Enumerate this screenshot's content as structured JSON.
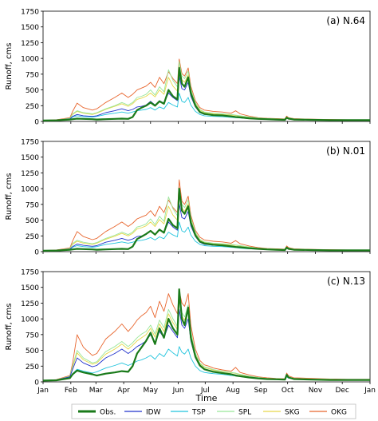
{
  "colors": {
    "Obs.": "#1a7a1a",
    "IDW": "#2233cc",
    "TSP": "#22c4dd",
    "SPL": "#99e699",
    "SKG": "#e6d84a",
    "OKG": "#e8662e"
  },
  "shared": {
    "xlabel": "Time",
    "ylabel": "Runoff, cms",
    "yticks": [
      "0",
      "250",
      "500",
      "750",
      "1000",
      "1250",
      "1500",
      "1750"
    ],
    "ylim": [
      0,
      1750
    ],
    "xlim_days": [
      0,
      365
    ],
    "month_ticks": [
      {
        "label": "Jan",
        "day": 0
      },
      {
        "label": "Feb",
        "day": 31
      },
      {
        "label": "Mar",
        "day": 59
      },
      {
        "label": "Apr",
        "day": 90
      },
      {
        "label": "May",
        "day": 120
      },
      {
        "label": "Jun",
        "day": 151
      },
      {
        "label": "Jul",
        "day": 181
      },
      {
        "label": "Aug",
        "day": 212
      },
      {
        "label": "Sep",
        "day": 243
      },
      {
        "label": "Oct",
        "day": 273
      },
      {
        "label": "Nov",
        "day": 304
      },
      {
        "label": "Dec",
        "day": 334
      },
      {
        "label": "Jan",
        "day": 365
      }
    ]
  },
  "legend": [
    "Obs.",
    "IDW",
    "TSP",
    "SPL",
    "SKG",
    "OKG"
  ],
  "chart_data": [
    {
      "type": "line",
      "title": "(a) N.64",
      "x_days": [
        0,
        15,
        30,
        33,
        38,
        45,
        55,
        60,
        70,
        80,
        88,
        95,
        100,
        105,
        110,
        115,
        120,
        125,
        130,
        135,
        140,
        145,
        150,
        152,
        155,
        158,
        162,
        165,
        170,
        175,
        180,
        185,
        190,
        200,
        210,
        215,
        220,
        230,
        240,
        250,
        260,
        270,
        272,
        274,
        280,
        300,
        320,
        340,
        365
      ],
      "series": [
        {
          "name": "Obs.",
          "values": [
            15,
            18,
            30,
            35,
            45,
            40,
            35,
            30,
            35,
            40,
            45,
            40,
            70,
            180,
            220,
            250,
            300,
            250,
            320,
            280,
            500,
            400,
            350,
            850,
            600,
            550,
            700,
            450,
            250,
            150,
            120,
            110,
            100,
            95,
            80,
            70,
            65,
            50,
            40,
            35,
            30,
            25,
            60,
            45,
            30,
            25,
            20,
            20,
            20
          ]
        },
        {
          "name": "IDW",
          "values": [
            15,
            20,
            40,
            80,
            110,
            90,
            80,
            90,
            140,
            170,
            200,
            170,
            190,
            230,
            240,
            260,
            320,
            260,
            330,
            290,
            450,
            380,
            330,
            720,
            520,
            500,
            620,
            400,
            230,
            140,
            110,
            105,
            95,
            90,
            75,
            70,
            60,
            45,
            40,
            35,
            30,
            25,
            60,
            45,
            30,
            25,
            20,
            20,
            20
          ]
        },
        {
          "name": "TSP",
          "values": [
            15,
            20,
            35,
            70,
            90,
            75,
            70,
            80,
            110,
            130,
            150,
            130,
            150,
            170,
            180,
            190,
            220,
            180,
            230,
            200,
            300,
            260,
            230,
            450,
            320,
            300,
            380,
            260,
            160,
            110,
            90,
            85,
            80,
            75,
            65,
            60,
            55,
            45,
            40,
            35,
            30,
            25,
            50,
            40,
            30,
            25,
            20,
            20,
            20
          ]
        },
        {
          "name": "SPL",
          "values": [
            15,
            22,
            50,
            120,
            170,
            140,
            120,
            140,
            200,
            250,
            300,
            260,
            300,
            380,
            400,
            430,
            500,
            420,
            550,
            470,
            820,
            650,
            550,
            950,
            720,
            680,
            800,
            520,
            300,
            190,
            150,
            140,
            130,
            120,
            110,
            100,
            90,
            70,
            55,
            45,
            40,
            35,
            70,
            55,
            40,
            30,
            25,
            20,
            20
          ]
        },
        {
          "name": "SKG",
          "values": [
            15,
            22,
            45,
            110,
            160,
            130,
            110,
            130,
            190,
            240,
            280,
            240,
            280,
            350,
            370,
            400,
            450,
            390,
            500,
            430,
            700,
            560,
            480,
            880,
            660,
            620,
            740,
            480,
            280,
            180,
            140,
            130,
            120,
            110,
            100,
            95,
            85,
            65,
            50,
            45,
            40,
            35,
            70,
            55,
            40,
            30,
            25,
            20,
            20
          ]
        },
        {
          "name": "OKG",
          "values": [
            15,
            25,
            60,
            160,
            290,
            220,
            180,
            200,
            300,
            380,
            450,
            380,
            430,
            500,
            530,
            560,
            620,
            540,
            700,
            600,
            790,
            680,
            600,
            990,
            760,
            720,
            850,
            560,
            330,
            220,
            180,
            170,
            160,
            150,
            130,
            170,
            120,
            85,
            60,
            50,
            45,
            40,
            85,
            60,
            45,
            35,
            30,
            25,
            25
          ]
        }
      ]
    },
    {
      "type": "line",
      "title": "(b) N.01",
      "x_days": [
        0,
        15,
        30,
        33,
        38,
        45,
        55,
        60,
        70,
        80,
        88,
        95,
        100,
        105,
        110,
        115,
        120,
        125,
        130,
        135,
        140,
        145,
        150,
        152,
        155,
        158,
        162,
        165,
        170,
        175,
        180,
        185,
        190,
        200,
        210,
        215,
        220,
        230,
        240,
        250,
        260,
        270,
        272,
        274,
        280,
        300,
        320,
        340,
        365
      ],
      "series": [
        {
          "name": "Obs.",
          "values": [
            15,
            18,
            30,
            35,
            45,
            40,
            35,
            30,
            35,
            40,
            45,
            40,
            80,
            200,
            240,
            280,
            330,
            270,
            350,
            300,
            520,
            420,
            370,
            1000,
            650,
            600,
            720,
            460,
            260,
            160,
            130,
            120,
            110,
            100,
            85,
            75,
            70,
            55,
            45,
            35,
            30,
            25,
            65,
            45,
            30,
            25,
            20,
            20,
            20
          ]
        },
        {
          "name": "IDW",
          "values": [
            15,
            20,
            40,
            80,
            120,
            100,
            85,
            95,
            150,
            180,
            210,
            180,
            200,
            240,
            250,
            270,
            330,
            270,
            340,
            300,
            470,
            390,
            340,
            760,
            540,
            520,
            640,
            410,
            240,
            150,
            115,
            110,
            100,
            95,
            80,
            75,
            65,
            50,
            40,
            35,
            30,
            25,
            60,
            45,
            30,
            25,
            20,
            20,
            20
          ]
        },
        {
          "name": "TSP",
          "values": [
            15,
            20,
            35,
            70,
            95,
            80,
            70,
            80,
            115,
            135,
            155,
            135,
            150,
            170,
            180,
            195,
            225,
            185,
            235,
            205,
            310,
            265,
            235,
            470,
            330,
            310,
            390,
            265,
            165,
            115,
            95,
            90,
            85,
            80,
            70,
            65,
            55,
            45,
            40,
            35,
            30,
            25,
            50,
            40,
            30,
            25,
            20,
            20,
            20
          ]
        },
        {
          "name": "SPL",
          "values": [
            15,
            22,
            50,
            130,
            180,
            150,
            125,
            145,
            210,
            260,
            310,
            270,
            310,
            390,
            410,
            440,
            520,
            430,
            560,
            480,
            870,
            680,
            570,
            1000,
            750,
            700,
            820,
            540,
            310,
            195,
            155,
            145,
            135,
            125,
            115,
            105,
            95,
            75,
            55,
            45,
            40,
            35,
            75,
            55,
            40,
            30,
            25,
            20,
            20
          ]
        },
        {
          "name": "SKG",
          "values": [
            15,
            22,
            45,
            115,
            165,
            135,
            115,
            135,
            195,
            245,
            290,
            250,
            290,
            360,
            380,
            410,
            470,
            400,
            510,
            440,
            720,
            580,
            500,
            920,
            690,
            640,
            760,
            500,
            290,
            185,
            145,
            135,
            125,
            115,
            105,
            100,
            90,
            70,
            50,
            45,
            40,
            35,
            70,
            55,
            40,
            30,
            25,
            20,
            20
          ]
        },
        {
          "name": "OKG",
          "values": [
            15,
            25,
            60,
            170,
            320,
            240,
            190,
            210,
            320,
            400,
            470,
            400,
            450,
            520,
            550,
            580,
            650,
            560,
            720,
            620,
            820,
            700,
            620,
            1140,
            800,
            750,
            880,
            580,
            340,
            230,
            185,
            175,
            165,
            155,
            135,
            175,
            125,
            90,
            65,
            50,
            45,
            40,
            90,
            65,
            45,
            35,
            30,
            25,
            25
          ]
        }
      ]
    },
    {
      "type": "line",
      "title": "(c) N.13",
      "x_days": [
        0,
        15,
        30,
        33,
        38,
        45,
        55,
        60,
        70,
        80,
        88,
        95,
        100,
        105,
        110,
        115,
        120,
        125,
        130,
        135,
        140,
        145,
        150,
        152,
        155,
        158,
        162,
        165,
        170,
        175,
        180,
        185,
        190,
        200,
        210,
        215,
        220,
        230,
        240,
        250,
        260,
        270,
        272,
        274,
        280,
        300,
        320,
        340,
        365
      ],
      "series": [
        {
          "name": "Obs.",
          "values": [
            20,
            25,
            60,
            120,
            180,
            150,
            120,
            100,
            130,
            150,
            170,
            160,
            250,
            450,
            550,
            650,
            780,
            600,
            850,
            700,
            1000,
            850,
            750,
            1470,
            1000,
            900,
            1180,
            700,
            400,
            260,
            200,
            180,
            160,
            140,
            120,
            100,
            90,
            70,
            55,
            45,
            40,
            35,
            110,
            70,
            45,
            35,
            30,
            30,
            30
          ]
        },
        {
          "name": "IDW",
          "values": [
            20,
            30,
            80,
            200,
            380,
            300,
            240,
            260,
            380,
            450,
            520,
            450,
            500,
            560,
            600,
            650,
            750,
            620,
            800,
            700,
            900,
            800,
            700,
            1150,
            900,
            850,
            1000,
            650,
            380,
            250,
            200,
            180,
            160,
            140,
            120,
            110,
            95,
            75,
            60,
            50,
            45,
            40,
            100,
            70,
            50,
            40,
            35,
            30,
            30
          ]
        },
        {
          "name": "TSP",
          "values": [
            20,
            28,
            60,
            130,
            200,
            170,
            140,
            160,
            220,
            260,
            300,
            260,
            290,
            330,
            350,
            380,
            420,
            360,
            450,
            400,
            520,
            460,
            410,
            560,
            470,
            440,
            520,
            380,
            250,
            180,
            150,
            140,
            130,
            120,
            100,
            95,
            85,
            65,
            55,
            45,
            40,
            35,
            80,
            60,
            45,
            35,
            30,
            30,
            30
          ]
        },
        {
          "name": "SPL",
          "values": [
            20,
            32,
            90,
            250,
            500,
            380,
            300,
            320,
            480,
            560,
            640,
            560,
            620,
            700,
            760,
            800,
            900,
            760,
            980,
            860,
            1150,
            1000,
            880,
            1400,
            1100,
            1030,
            1220,
            800,
            460,
            300,
            240,
            220,
            195,
            170,
            150,
            140,
            120,
            90,
            70,
            55,
            50,
            45,
            115,
            80,
            55,
            45,
            40,
            35,
            35
          ]
        },
        {
          "name": "SKG",
          "values": [
            20,
            30,
            85,
            230,
            460,
            350,
            280,
            300,
            440,
            520,
            600,
            520,
            580,
            650,
            700,
            750,
            850,
            710,
            920,
            800,
            1080,
            940,
            830,
            1320,
            1040,
            980,
            1150,
            760,
            440,
            290,
            230,
            210,
            185,
            165,
            145,
            135,
            115,
            85,
            65,
            55,
            50,
            45,
            110,
            75,
            55,
            45,
            40,
            35,
            35
          ]
        },
        {
          "name": "OKG",
          "values": [
            20,
            35,
            100,
            300,
            750,
            550,
            420,
            450,
            680,
            800,
            920,
            800,
            880,
            980,
            1050,
            1100,
            1200,
            1020,
            1280,
            1120,
            1400,
            1220,
            1080,
            1450,
            1250,
            1200,
            1400,
            900,
            520,
            340,
            270,
            250,
            220,
            190,
            170,
            230,
            150,
            110,
            80,
            65,
            55,
            50,
            140,
            95,
            65,
            55,
            45,
            40,
            40
          ]
        }
      ]
    }
  ]
}
